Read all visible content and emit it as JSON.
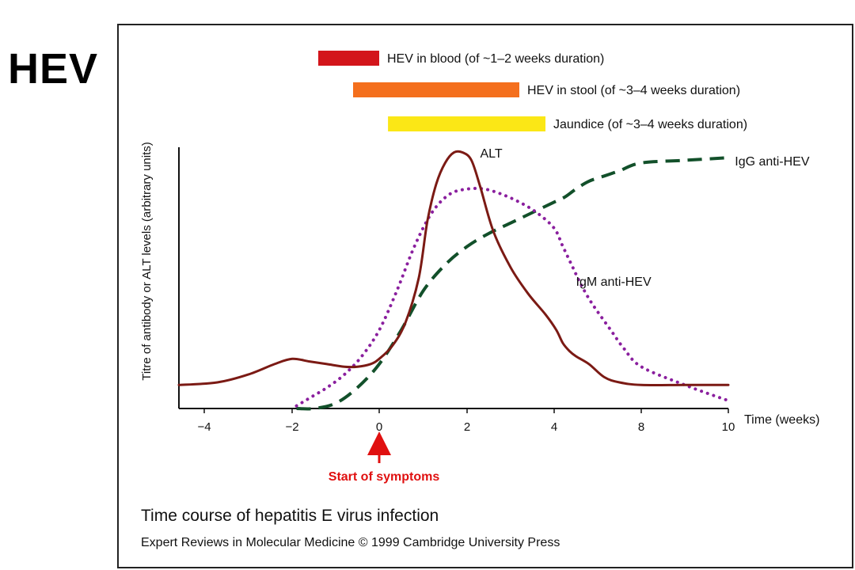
{
  "slide": {
    "title": "HEV"
  },
  "figure": {
    "caption": "Time course of hepatitis E virus infection",
    "credit": "Expert Reviews in Molecular Medicine © 1999 Cambridge University Press"
  },
  "chart_data": {
    "type": "line",
    "title": "",
    "xlabel": "Time (weeks)",
    "ylabel": "Titre of antibody or ALT levels (arbitrary units)",
    "x_ticks": [
      -4,
      -2,
      0,
      2,
      4,
      8,
      10
    ],
    "x_tick_labels": [
      "−4",
      "−2",
      "0",
      "2",
      "4",
      "8",
      "10"
    ],
    "xlim": [
      -4.5,
      10
    ],
    "ylim": [
      0,
      100
    ],
    "annotation": {
      "label": "Start of symptoms",
      "x": 0,
      "color": "#e01010"
    },
    "duration_bars": [
      {
        "label": "HEV in blood (of ~1–2 weeks duration)",
        "start": -1.4,
        "end": 0,
        "color": "#d3151b"
      },
      {
        "label": "HEV in stool (of ~3–4 weeks duration)",
        "start": -0.6,
        "end": 3.2,
        "color": "#f46f1d"
      },
      {
        "label": "Jaundice (of ~3–4 weeks duration)",
        "start": 0.2,
        "end": 3.8,
        "color": "#fbe716"
      }
    ],
    "series": [
      {
        "name": "ALT",
        "style": "solid",
        "color": "#7b1a14",
        "x": [
          -4.5,
          -3.7,
          -3.0,
          -2.4,
          -2.0,
          -1.6,
          -1.2,
          -0.8,
          -0.5,
          -0.2,
          0.0,
          0.3,
          0.6,
          0.9,
          1.1,
          1.3,
          1.5,
          1.7,
          1.9,
          2.1,
          2.3,
          2.6,
          3.0,
          3.4,
          3.8,
          4.1,
          4.4,
          4.7,
          5.0,
          5.6,
          6.3,
          7.0,
          8.0,
          9.0,
          10.0
        ],
        "y": [
          9,
          10,
          13,
          17,
          19,
          18,
          17,
          16,
          16,
          17,
          19,
          24,
          33,
          50,
          72,
          86,
          94,
          98,
          98,
          95,
          85,
          68,
          54,
          44,
          36,
          30,
          25,
          22,
          20,
          17,
          12,
          10,
          9,
          9,
          9
        ]
      },
      {
        "name": "IgM anti-HEV",
        "style": "dotted",
        "color": "#8a1f9e",
        "x": [
          -1.9,
          -1.6,
          -1.2,
          -0.8,
          -0.4,
          0.0,
          0.4,
          0.8,
          1.2,
          1.6,
          2.0,
          2.4,
          2.8,
          3.2,
          3.6,
          4.0,
          4.4,
          4.8,
          5.2,
          5.6,
          6.0,
          6.6,
          7.2,
          8.0,
          9.0,
          10.0
        ],
        "y": [
          1,
          4,
          8,
          13,
          20,
          30,
          45,
          62,
          75,
          82,
          84,
          84,
          82,
          79,
          75,
          69,
          62,
          55,
          48,
          42,
          37,
          30,
          23,
          16,
          9,
          3
        ]
      },
      {
        "name": "IgG anti-HEV",
        "style": "dashed",
        "color": "#12502a",
        "x": [
          -1.9,
          -1.5,
          -1.0,
          -0.5,
          0.0,
          0.5,
          1.0,
          1.5,
          2.0,
          2.5,
          3.0,
          3.5,
          4.0,
          4.5,
          5.0,
          5.6,
          6.3,
          7.0,
          8.0,
          9.0,
          10.0
        ],
        "y": [
          0,
          0,
          2,
          8,
          17,
          30,
          45,
          55,
          62,
          67,
          71,
          75,
          79,
          81,
          84,
          87,
          89,
          91,
          94,
          95,
          96
        ]
      }
    ],
    "series_label_positions": [
      {
        "name": "ALT",
        "x": 2.3,
        "y": 96
      },
      {
        "name": "IgM anti-HEV",
        "x": 5.0,
        "y": 47
      },
      {
        "name": "IgG anti-HEV",
        "x": 10.15,
        "y": 93
      }
    ],
    "grid": false,
    "legend": "none"
  }
}
